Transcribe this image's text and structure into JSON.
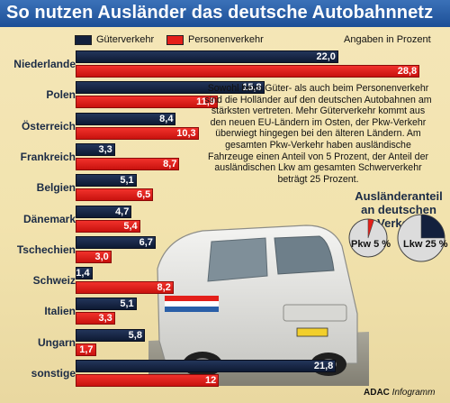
{
  "header": {
    "title": "So nutzen Ausländer das deutsche Autobahnnetz"
  },
  "legend": {
    "goods": "Güterverkehr",
    "passenger": "Personenverkehr",
    "unit": "Angaben in Prozent"
  },
  "colors": {
    "goods": "#13203d",
    "passenger": "#e41f1a",
    "title_bar": "#2a5fa8"
  },
  "note": "Sowohl beim Güter- als auch beim Personenverkehr sind die Holländer auf den deutschen Autobahnen am stärksten vertreten. Mehr Güterverkehr kommt aus den neuen EU-Ländern im Osten, der Pkw-Verkehr überwiegt hingegen bei den älteren Ländern. Am gesamten Pkw-Verkehr haben ausländische Fahrzeuge einen Anteil von 5 Prozent, der Anteil der ausländischen Lkw am gesamten Schwerverkehr beträgt 25 Prozent.",
  "pie_title": "Ausländeranteil an deutschen Verkehr",
  "pies": [
    {
      "label": "Pkw 5 %",
      "value": 5
    },
    {
      "label": "Lkw 25 %",
      "value": 25
    }
  ],
  "brand": {
    "name": "ADAC",
    "suffix": "Infogramm"
  },
  "chart_data": {
    "type": "bar",
    "categories": [
      "Niederlande",
      "Polen",
      "Österreich",
      "Frankreich",
      "Belgien",
      "Dänemark",
      "Tschechien",
      "Schweiz",
      "Italien",
      "Ungarn",
      "sonstige"
    ],
    "series": [
      {
        "name": "Güterverkehr",
        "values": [
          22.0,
          15.8,
          8.4,
          3.3,
          5.1,
          4.7,
          6.7,
          1.4,
          5.1,
          5.8,
          21.8
        ],
        "labels": [
          "22,0",
          "15,8",
          "8,4",
          "3,3",
          "5,1",
          "4,7",
          "6,7",
          "1,4",
          "5,1",
          "5,8",
          "21,8"
        ]
      },
      {
        "name": "Personenverkehr",
        "values": [
          28.8,
          11.9,
          10.3,
          8.7,
          6.5,
          5.4,
          3.0,
          8.2,
          3.3,
          1.7,
          12
        ],
        "labels": [
          "28,8",
          "11,9",
          "10,3",
          "8,7",
          "6,5",
          "5,4",
          "3,0",
          "8,2",
          "3,3",
          "1,7",
          "12"
        ]
      }
    ],
    "title": "So nutzen Ausländer das deutsche Autobahnnetz",
    "unit": "Angaben in Prozent"
  }
}
